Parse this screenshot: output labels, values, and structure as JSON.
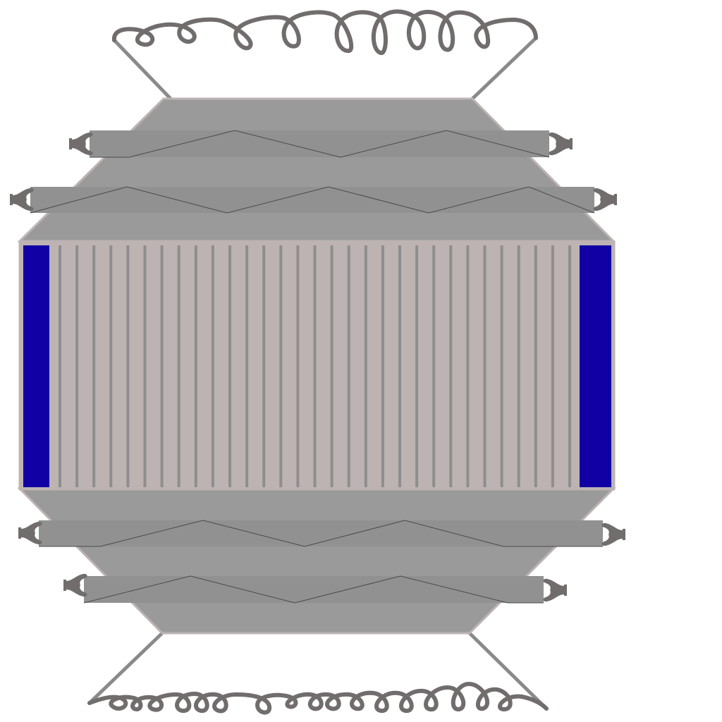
{
  "canvas": {
    "background": "#ffffff"
  },
  "colors": {
    "housing": "#9a9a9a",
    "housing_outline": "#bdb3b3",
    "bar": "#919191",
    "bar_line": "#4a4a4a",
    "core": "#bdb3b3",
    "core_slat": "#8e8e8e",
    "core_end": "#1100a3",
    "spring": "#716d6d",
    "wire": "#8a8a8a",
    "wingnut": "#716d6d"
  },
  "parts": {
    "top_spring": "coil-spring",
    "bottom_spring": "coil-spring",
    "bars": [
      "tension-bar",
      "tension-bar",
      "tension-bar",
      "tension-bar"
    ],
    "wingnuts": [
      "wing-nut",
      "wing-nut",
      "wing-nut",
      "wing-nut",
      "wing-nut",
      "wing-nut",
      "wing-nut",
      "wing-nut"
    ],
    "core_slat_count": 31
  }
}
